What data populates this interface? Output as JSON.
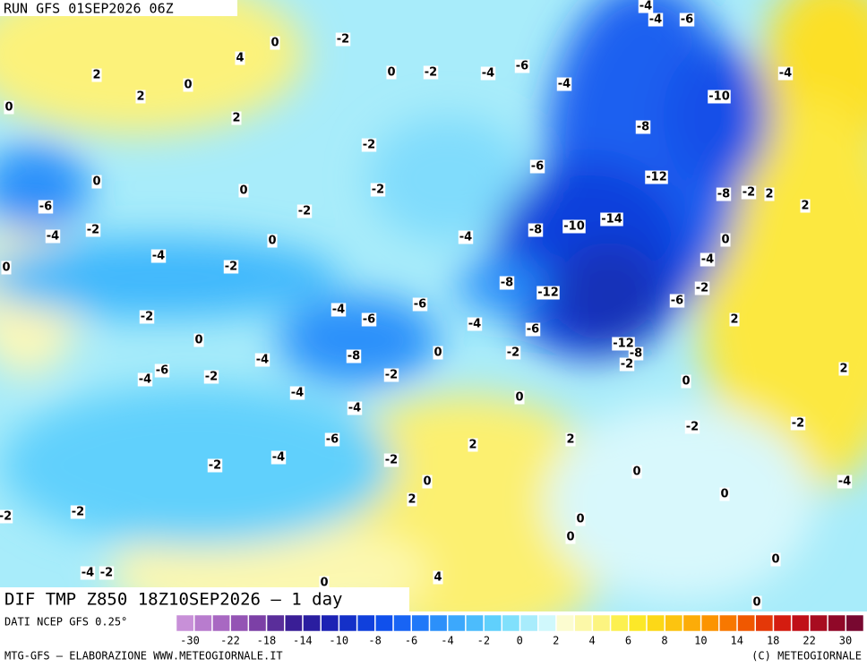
{
  "header": {
    "run": "RUN GFS 01SEP2026 06Z"
  },
  "footer": {
    "title": "DIF TMP Z850 18Z10SEP2026 – 1 day",
    "source": "DATI NCEP GFS 0.25°",
    "credit": "MTG-GFS – ELABORAZIONE WWW.METEOGIORNALE.IT",
    "copyright": "(C) METEOGIORNALE"
  },
  "colorbar": {
    "colors": [
      "#c890d8",
      "#b87cce",
      "#a868c2",
      "#9454b4",
      "#7c40a6",
      "#5a2e9a",
      "#3a1e96",
      "#2a1ea0",
      "#1c22b4",
      "#1430c8",
      "#1040dc",
      "#1050ec",
      "#1864f4",
      "#2078f8",
      "#2c90fa",
      "#3ca8fc",
      "#4cbcfc",
      "#60d0fc",
      "#80e0fc",
      "#a8ecfc",
      "#d0f8fc",
      "#fcfcd0",
      "#fcf8a8",
      "#fcf480",
      "#fcf050",
      "#fce828",
      "#fcd818",
      "#fcc410",
      "#fcac08",
      "#fc9400",
      "#f87800",
      "#f05800",
      "#e43808",
      "#d41c10",
      "#c01018",
      "#a80c20",
      "#900828",
      "#780830"
    ],
    "labels": [
      -30,
      -22,
      -18,
      -14,
      -10,
      -8,
      -6,
      -4,
      -2,
      0,
      2,
      4,
      6,
      8,
      10,
      14,
      18,
      22,
      30
    ]
  },
  "map": {
    "labels": [
      4,
      0,
      -2,
      2,
      0,
      2,
      0,
      2,
      0,
      -2,
      -4,
      -6,
      -4,
      -4,
      -4,
      -6,
      -4,
      -10,
      -8,
      -2,
      -6,
      -12,
      0,
      0,
      -2,
      -8,
      -2,
      2,
      2,
      -6,
      -2,
      -14,
      -10,
      -8,
      -4,
      -2,
      0,
      -4,
      0,
      -4,
      -2,
      -4,
      0,
      -8,
      -2,
      -12,
      -6,
      -4,
      -6,
      -6,
      -2,
      2,
      -4,
      -6,
      0,
      -12,
      -8,
      -2,
      0,
      -4,
      -8,
      -2,
      -6,
      -4,
      -2,
      -2,
      2,
      0,
      -4,
      0,
      -4,
      -2,
      -2,
      -6,
      2,
      2,
      -2,
      -4,
      -2,
      0,
      0,
      -4,
      0,
      2,
      -2,
      -2,
      0,
      0,
      -4,
      -2,
      0,
      0,
      4,
      0
    ]
  }
}
